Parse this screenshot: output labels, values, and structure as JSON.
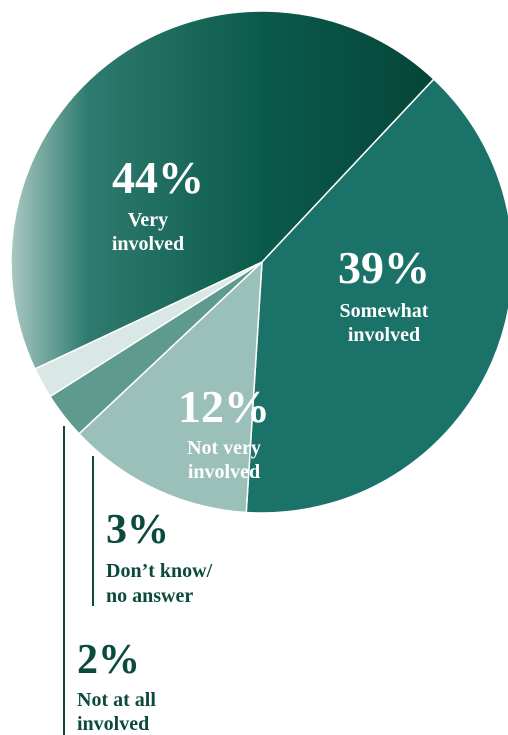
{
  "chart_data": {
    "type": "pie",
    "slices": [
      {
        "value": 44,
        "percent_label": "44%",
        "label_lines": [
          "Very",
          "involved"
        ],
        "color": "#0a5a4b"
      },
      {
        "value": 39,
        "percent_label": "39%",
        "label_lines": [
          "Somewhat",
          "involved"
        ],
        "color": "#1a7268"
      },
      {
        "value": 12,
        "percent_label": "12%",
        "label_lines": [
          "Not very",
          "involved"
        ],
        "color": "#9bbfb9"
      },
      {
        "value": 3,
        "percent_label": "3%",
        "label_lines": [
          "Don’t know/",
          "no answer"
        ],
        "color": "#5e9a8e"
      },
      {
        "value": 2,
        "percent_label": "2%",
        "label_lines": [
          "Not at all",
          "involved"
        ],
        "color": "#d9e8e4"
      }
    ],
    "legend": "none",
    "grid": false
  }
}
